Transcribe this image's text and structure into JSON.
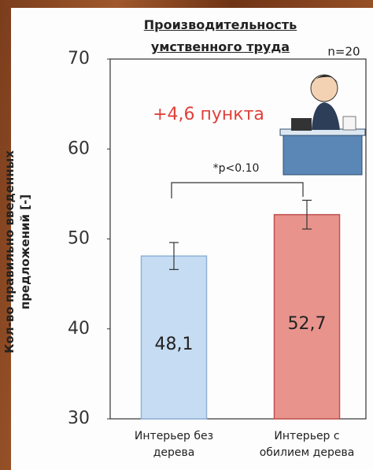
{
  "chart_data": {
    "type": "bar",
    "title": "Производительность умственного труда",
    "y_label": "Кол-во правильно введенных предложений [-]",
    "annotations": [
      "n=20",
      "+4,6 пункта",
      "*p<0.10"
    ],
    "categories": [
      "Интерьер без дерева",
      "Интерьер с обилием дерева"
    ],
    "values": [
      48.1,
      52.7
    ],
    "value_labels": [
      "48,1",
      "52,7"
    ],
    "errors": [
      1.5,
      1.6
    ],
    "colors": [
      "#c6dcf3",
      "#e8948d"
    ],
    "edge_colors": [
      "#8eb2d8",
      "#c0504d"
    ],
    "ylim": [
      30,
      70
    ],
    "yticks": [
      30,
      40,
      50,
      60,
      70
    ]
  }
}
